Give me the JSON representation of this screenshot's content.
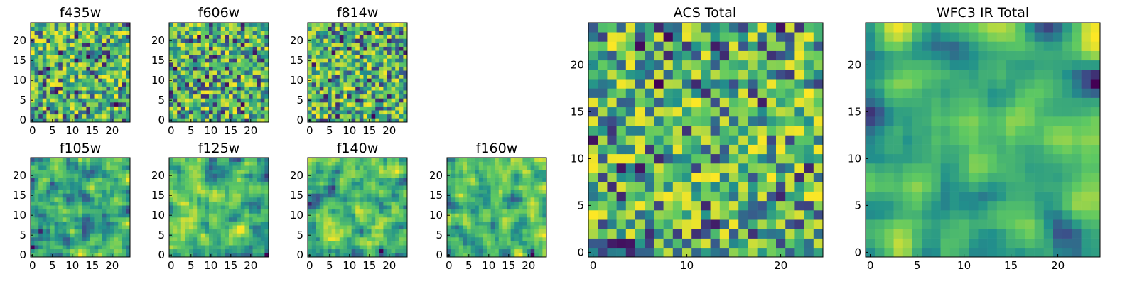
{
  "chart_data": [
    {
      "type": "heatmap",
      "title": "f435w",
      "grid": 25,
      "seed": 11,
      "smooth": 0,
      "xticks": [
        0,
        5,
        10,
        15,
        20
      ],
      "yticks": [
        0,
        5,
        10,
        15,
        20
      ],
      "xlim": [
        -0.5,
        24.5
      ],
      "ylim": [
        -0.5,
        24.5
      ]
    },
    {
      "type": "heatmap",
      "title": "f606w",
      "grid": 25,
      "seed": 23,
      "smooth": 0,
      "xticks": [
        0,
        5,
        10,
        15,
        20
      ],
      "yticks": [
        0,
        5,
        10,
        15,
        20
      ],
      "xlim": [
        -0.5,
        24.5
      ],
      "ylim": [
        -0.5,
        24.5
      ]
    },
    {
      "type": "heatmap",
      "title": "f814w",
      "grid": 25,
      "seed": 37,
      "smooth": 0,
      "xticks": [
        0,
        5,
        10,
        15,
        20
      ],
      "yticks": [
        0,
        5,
        10,
        15,
        20
      ],
      "xlim": [
        -0.5,
        24.5
      ],
      "ylim": [
        -0.5,
        24.5
      ]
    },
    {
      "type": "heatmap",
      "title": "f105w",
      "grid": 25,
      "seed": 41,
      "smooth": 1,
      "xticks": [
        0,
        5,
        10,
        15,
        20
      ],
      "yticks": [
        0,
        5,
        10,
        15,
        20
      ],
      "xlim": [
        -0.5,
        24.5
      ],
      "ylim": [
        -0.5,
        24.5
      ]
    },
    {
      "type": "heatmap",
      "title": "f125w",
      "grid": 25,
      "seed": 53,
      "smooth": 1,
      "xticks": [
        0,
        5,
        10,
        15,
        20
      ],
      "yticks": [
        0,
        5,
        10,
        15,
        20
      ],
      "xlim": [
        -0.5,
        24.5
      ],
      "ylim": [
        -0.5,
        24.5
      ]
    },
    {
      "type": "heatmap",
      "title": "f140w",
      "grid": 25,
      "seed": 67,
      "smooth": 1,
      "xticks": [
        0,
        5,
        10,
        15,
        20
      ],
      "yticks": [
        0,
        5,
        10,
        15,
        20
      ],
      "xlim": [
        -0.5,
        24.5
      ],
      "ylim": [
        -0.5,
        24.5
      ]
    },
    {
      "type": "heatmap",
      "title": "f160w",
      "grid": 25,
      "seed": 79,
      "smooth": 1,
      "xticks": [
        0,
        5,
        10,
        15,
        20
      ],
      "yticks": [
        0,
        5,
        10,
        15,
        20
      ],
      "xlim": [
        -0.5,
        24.5
      ],
      "ylim": [
        -0.5,
        24.5
      ]
    },
    {
      "type": "heatmap",
      "title": "ACS Total",
      "grid": 25,
      "seed": 97,
      "smooth": 0,
      "xticks": [
        0,
        10,
        20
      ],
      "yticks": [
        0,
        5,
        10,
        15,
        20
      ],
      "xlim": [
        -0.5,
        24.5
      ],
      "ylim": [
        -0.5,
        24.5
      ]
    },
    {
      "type": "heatmap",
      "title": "WFC3 IR Total",
      "grid": 25,
      "seed": 113,
      "smooth": 2,
      "xticks": [
        0,
        5,
        10,
        15,
        20
      ],
      "yticks": [
        0,
        5,
        10,
        15,
        20
      ],
      "xlim": [
        -0.5,
        24.5
      ],
      "ylim": [
        -0.5,
        24.5
      ]
    }
  ],
  "colormap": [
    "#440154",
    "#3b528b",
    "#21918c",
    "#5ec962",
    "#fde725"
  ]
}
